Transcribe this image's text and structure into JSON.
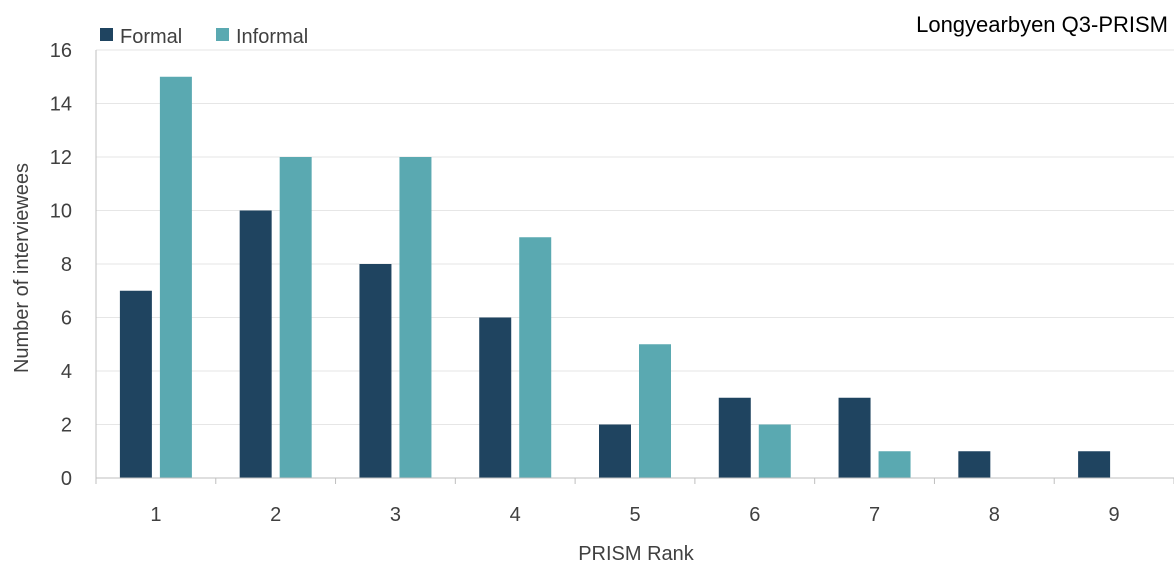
{
  "chart_data": {
    "type": "bar",
    "title": "Longyearbyen Q3-PRISM",
    "xlabel": "PRISM Rank",
    "ylabel": "Number of interviewees",
    "categories": [
      "1",
      "2",
      "3",
      "4",
      "5",
      "6",
      "7",
      "8",
      "9"
    ],
    "series": [
      {
        "name": "Formal",
        "color": "#1f4460",
        "values": [
          7,
          10,
          8,
          6,
          2,
          3,
          3,
          1,
          1
        ]
      },
      {
        "name": "Informal",
        "color": "#5aa9b1",
        "values": [
          15,
          12,
          12,
          9,
          5,
          2,
          1,
          0,
          0
        ]
      }
    ],
    "ylim": [
      0,
      16
    ],
    "yticks": [
      0,
      2,
      4,
      6,
      8,
      10,
      12,
      14,
      16
    ],
    "grid": true,
    "legend_position": "top-left"
  }
}
